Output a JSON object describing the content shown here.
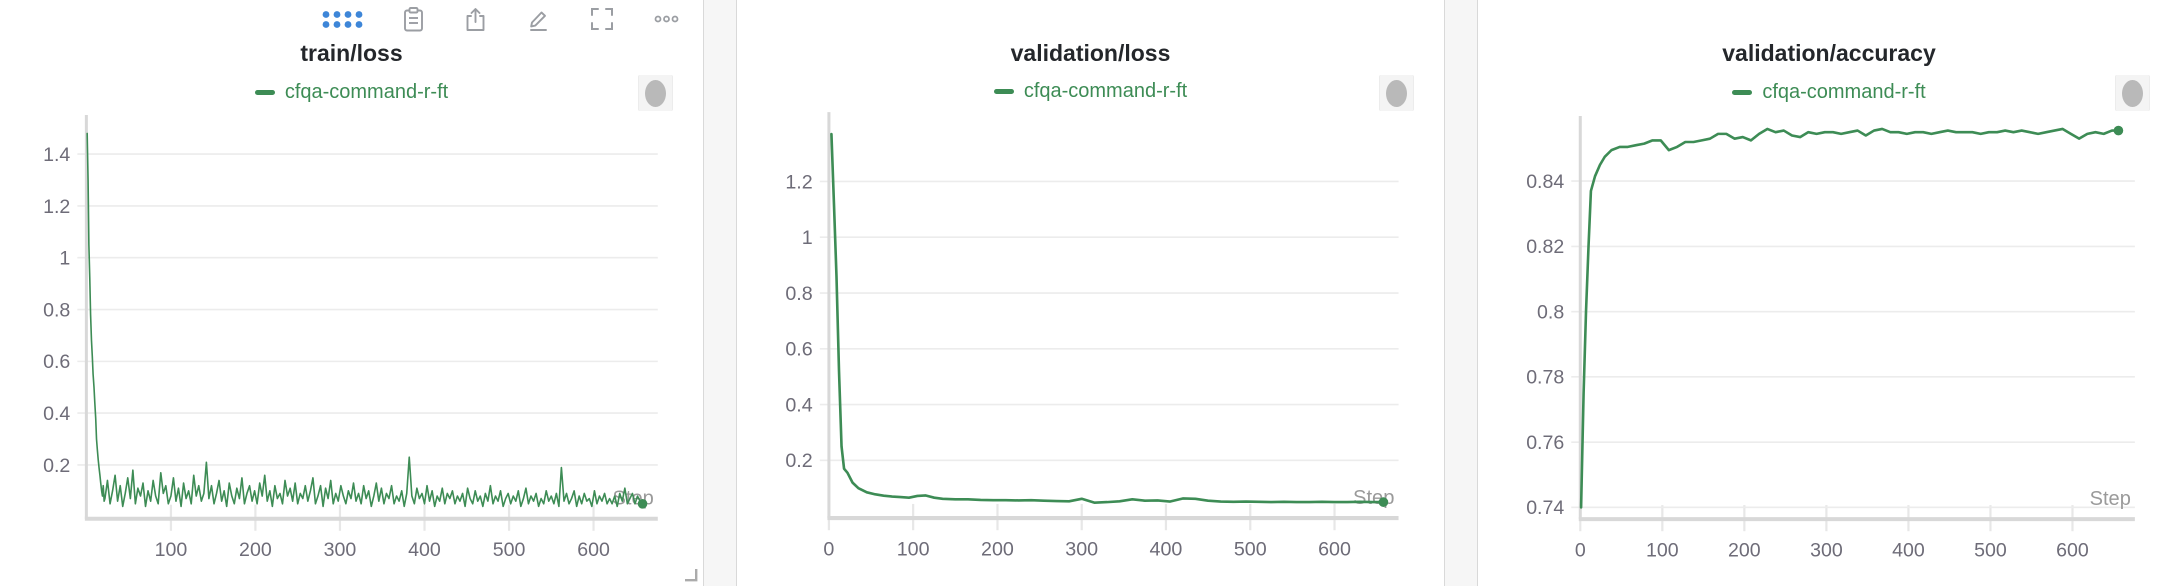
{
  "colors": {
    "line_green": "#3d8c55",
    "grid": "#ececec",
    "axis": "#d8d8d8",
    "tick_stub": "#e7e7e7",
    "tick_label": "#6e6c78",
    "step_label": "#9a9a9a",
    "title": "#24272b",
    "toolbar_icon": "#9b9ea3",
    "drag_dots_blue": "#3e86d8",
    "bubble_bg": "#f4f4f4",
    "bubble_dot": "#b9b9b9"
  },
  "toolbar": {
    "icons": [
      "drag-handle-dots",
      "clipboard",
      "export",
      "edit",
      "fullscreen",
      "more-options"
    ]
  },
  "chart_data": [
    {
      "type": "line",
      "title": "train/loss",
      "xlabel": "Step",
      "legend_position": "top-center",
      "grid": true,
      "plot_left": 86,
      "xlim": [
        0,
        676
      ],
      "ylim": [
        0,
        1.52
      ],
      "xticks": {
        "values": [
          100,
          200,
          300,
          400,
          500,
          600
        ],
        "labels": [
          "100",
          "200",
          "300",
          "400",
          "500",
          "600"
        ]
      },
      "yticks": {
        "values": [
          0.2,
          0.4,
          0.6,
          0.8,
          1,
          1.2,
          1.4
        ],
        "labels": [
          "0.2",
          "0.4",
          "0.6",
          "0.8",
          "1",
          "1.2",
          "1.4"
        ]
      },
      "series": [
        {
          "name": "cfqa-command-r-ft",
          "color": "#3d8c55",
          "end_dot": true,
          "points_head": [
            [
              1,
              1.48
            ],
            [
              2,
              1.3
            ],
            [
              3,
              1.05
            ],
            [
              4,
              0.92
            ],
            [
              5,
              0.78
            ],
            [
              6,
              0.68
            ],
            [
              7,
              0.62
            ],
            [
              8,
              0.55
            ],
            [
              9,
              0.5
            ],
            [
              10,
              0.44
            ],
            [
              11,
              0.38
            ],
            [
              12,
              0.3
            ],
            [
              13,
              0.26
            ],
            [
              14,
              0.22
            ],
            [
              15,
              0.19
            ],
            [
              16,
              0.16
            ],
            [
              17,
              0.13
            ],
            [
              18,
              0.1
            ],
            [
              19,
              0.08
            ],
            [
              20,
              0.12
            ],
            [
              21,
              0.06
            ]
          ],
          "noise_start": 22,
          "noise_step": 3,
          "noise": [
            0.07,
            0.14,
            0.05,
            0.1,
            0.16,
            0.06,
            0.12,
            0.04,
            0.09,
            0.15,
            0.07,
            0.18,
            0.05,
            0.11,
            0.08,
            0.13,
            0.04,
            0.1,
            0.06,
            0.14,
            0.08,
            0.05,
            0.17,
            0.09,
            0.12,
            0.05,
            0.08,
            0.15,
            0.06,
            0.11,
            0.04,
            0.13,
            0.07,
            0.1,
            0.05,
            0.16,
            0.08,
            0.12,
            0.06,
            0.09,
            0.21,
            0.07,
            0.12,
            0.05,
            0.09,
            0.14,
            0.06,
            0.1,
            0.04,
            0.13,
            0.08,
            0.05,
            0.11,
            0.07,
            0.15,
            0.05,
            0.09,
            0.12,
            0.06,
            0.1,
            0.05,
            0.13,
            0.08,
            0.16,
            0.06,
            0.1,
            0.04,
            0.12,
            0.07,
            0.09,
            0.05,
            0.14,
            0.08,
            0.11,
            0.06,
            0.13,
            0.05,
            0.09,
            0.07,
            0.12,
            0.06,
            0.1,
            0.15,
            0.05,
            0.08,
            0.12,
            0.04,
            0.11,
            0.07,
            0.14,
            0.05,
            0.09,
            0.06,
            0.12,
            0.08,
            0.05,
            0.1,
            0.07,
            0.13,
            0.06,
            0.09,
            0.05,
            0.12,
            0.07,
            0.1,
            0.04,
            0.08,
            0.13,
            0.06,
            0.11,
            0.05,
            0.09,
            0.07,
            0.12,
            0.05,
            0.08,
            0.06,
            0.1,
            0.04,
            0.09,
            0.23,
            0.08,
            0.05,
            0.11,
            0.07,
            0.09,
            0.05,
            0.12,
            0.06,
            0.1,
            0.04,
            0.08,
            0.06,
            0.11,
            0.05,
            0.09,
            0.07,
            0.1,
            0.05,
            0.08,
            0.06,
            0.09,
            0.04,
            0.11,
            0.07,
            0.05,
            0.1,
            0.06,
            0.08,
            0.04,
            0.09,
            0.06,
            0.12,
            0.05,
            0.08,
            0.06,
            0.1,
            0.04,
            0.07,
            0.09,
            0.05,
            0.08,
            0.06,
            0.1,
            0.04,
            0.07,
            0.11,
            0.05,
            0.08,
            0.06,
            0.09,
            0.04,
            0.07,
            0.05,
            0.1,
            0.06,
            0.08,
            0.05,
            0.09,
            0.04,
            0.19,
            0.06,
            0.09,
            0.05,
            0.07,
            0.1,
            0.04,
            0.08,
            0.05,
            0.09,
            0.06,
            0.07,
            0.04,
            0.1,
            0.05,
            0.08,
            0.06,
            0.09,
            0.05,
            0.07,
            0.05,
            0.08,
            0.04,
            0.09,
            0.06,
            0.11,
            0.05,
            0.07,
            0.09,
            0.05,
            0.08,
            0.06,
            0.05
          ]
        }
      ]
    },
    {
      "type": "line",
      "title": "validation/loss",
      "xlabel": "Step",
      "legend_position": "top-center",
      "grid": true,
      "plot_left": 91,
      "xlim": [
        0,
        676
      ],
      "ylim": [
        0,
        1.42
      ],
      "xticks": {
        "values": [
          0,
          100,
          200,
          300,
          400,
          500,
          600
        ],
        "labels": [
          "0",
          "100",
          "200",
          "300",
          "400",
          "500",
          "600"
        ]
      },
      "yticks": {
        "values": [
          0.2,
          0.4,
          0.6,
          0.8,
          1,
          1.2
        ],
        "labels": [
          "0.2",
          "0.4",
          "0.6",
          "0.8",
          "1",
          "1.2"
        ]
      },
      "series": [
        {
          "name": "cfqa-command-r-ft",
          "color": "#3d8c55",
          "end_dot": true,
          "points": [
            [
              3,
              1.37
            ],
            [
              6,
              1.12
            ],
            [
              9,
              0.86
            ],
            [
              12,
              0.52
            ],
            [
              15,
              0.25
            ],
            [
              18,
              0.17
            ],
            [
              22,
              0.155
            ],
            [
              28,
              0.12
            ],
            [
              35,
              0.1
            ],
            [
              45,
              0.085
            ],
            [
              55,
              0.078
            ],
            [
              65,
              0.073
            ],
            [
              75,
              0.07
            ],
            [
              85,
              0.068
            ],
            [
              95,
              0.066
            ],
            [
              105,
              0.072
            ],
            [
              115,
              0.074
            ],
            [
              125,
              0.066
            ],
            [
              135,
              0.062
            ],
            [
              150,
              0.06
            ],
            [
              165,
              0.06
            ],
            [
              180,
              0.058
            ],
            [
              195,
              0.057
            ],
            [
              210,
              0.057
            ],
            [
              225,
              0.056
            ],
            [
              240,
              0.057
            ],
            [
              255,
              0.055
            ],
            [
              270,
              0.054
            ],
            [
              285,
              0.053
            ],
            [
              300,
              0.062
            ],
            [
              315,
              0.048
            ],
            [
              330,
              0.05
            ],
            [
              345,
              0.053
            ],
            [
              360,
              0.06
            ],
            [
              375,
              0.055
            ],
            [
              390,
              0.056
            ],
            [
              405,
              0.052
            ],
            [
              420,
              0.063
            ],
            [
              435,
              0.062
            ],
            [
              450,
              0.055
            ],
            [
              465,
              0.052
            ],
            [
              480,
              0.051
            ],
            [
              495,
              0.052
            ],
            [
              510,
              0.051
            ],
            [
              525,
              0.05
            ],
            [
              540,
              0.051
            ],
            [
              555,
              0.05
            ],
            [
              570,
              0.05
            ],
            [
              585,
              0.051
            ],
            [
              600,
              0.05
            ],
            [
              615,
              0.05
            ],
            [
              630,
              0.051
            ],
            [
              645,
              0.05
            ],
            [
              658,
              0.05
            ]
          ]
        }
      ]
    },
    {
      "type": "line",
      "title": "validation/accuracy",
      "xlabel": "Step",
      "legend_position": "top-center",
      "grid": true,
      "plot_left": 102,
      "xlim": [
        0,
        676
      ],
      "ylim": [
        0.737,
        0.8575
      ],
      "xticks": {
        "values": [
          0,
          100,
          200,
          300,
          400,
          500,
          600
        ],
        "labels": [
          "0",
          "100",
          "200",
          "300",
          "400",
          "500",
          "600"
        ]
      },
      "yticks": {
        "values": [
          0.74,
          0.76,
          0.78,
          0.8,
          0.82,
          0.84
        ],
        "labels": [
          "0.74",
          "0.76",
          "0.78",
          "0.8",
          "0.82",
          "0.84"
        ]
      },
      "series": [
        {
          "name": "cfqa-command-r-ft",
          "color": "#3d8c55",
          "end_dot": true,
          "points": [
            [
              1,
              0.74
            ],
            [
              4,
              0.775
            ],
            [
              7,
              0.8
            ],
            [
              10,
              0.82
            ],
            [
              13,
              0.837
            ],
            [
              18,
              0.8415
            ],
            [
              24,
              0.845
            ],
            [
              30,
              0.8475
            ],
            [
              38,
              0.8495
            ],
            [
              48,
              0.8505
            ],
            [
              58,
              0.8505
            ],
            [
              68,
              0.851
            ],
            [
              78,
              0.8515
            ],
            [
              88,
              0.8525
            ],
            [
              98,
              0.8525
            ],
            [
              108,
              0.8495
            ],
            [
              118,
              0.8505
            ],
            [
              128,
              0.852
            ],
            [
              138,
              0.852
            ],
            [
              148,
              0.8525
            ],
            [
              158,
              0.853
            ],
            [
              168,
              0.8545
            ],
            [
              178,
              0.8545
            ],
            [
              188,
              0.853
            ],
            [
              198,
              0.8535
            ],
            [
              208,
              0.8525
            ],
            [
              218,
              0.8545
            ],
            [
              228,
              0.856
            ],
            [
              238,
              0.855
            ],
            [
              248,
              0.8555
            ],
            [
              258,
              0.854
            ],
            [
              268,
              0.8535
            ],
            [
              278,
              0.855
            ],
            [
              288,
              0.8545
            ],
            [
              298,
              0.855
            ],
            [
              308,
              0.855
            ],
            [
              318,
              0.8545
            ],
            [
              328,
              0.855
            ],
            [
              338,
              0.8555
            ],
            [
              348,
              0.854
            ],
            [
              358,
              0.8555
            ],
            [
              368,
              0.856
            ],
            [
              378,
              0.855
            ],
            [
              388,
              0.855
            ],
            [
              398,
              0.8545
            ],
            [
              408,
              0.855
            ],
            [
              418,
              0.855
            ],
            [
              428,
              0.8545
            ],
            [
              438,
              0.855
            ],
            [
              448,
              0.8555
            ],
            [
              458,
              0.855
            ],
            [
              468,
              0.855
            ],
            [
              478,
              0.855
            ],
            [
              488,
              0.8545
            ],
            [
              498,
              0.855
            ],
            [
              508,
              0.855
            ],
            [
              518,
              0.8555
            ],
            [
              528,
              0.855
            ],
            [
              538,
              0.8555
            ],
            [
              548,
              0.855
            ],
            [
              558,
              0.8545
            ],
            [
              568,
              0.855
            ],
            [
              578,
              0.8555
            ],
            [
              588,
              0.856
            ],
            [
              598,
              0.8545
            ],
            [
              608,
              0.853
            ],
            [
              618,
              0.8545
            ],
            [
              628,
              0.855
            ],
            [
              638,
              0.8545
            ],
            [
              648,
              0.8555
            ],
            [
              656,
              0.8555
            ]
          ]
        }
      ]
    }
  ]
}
